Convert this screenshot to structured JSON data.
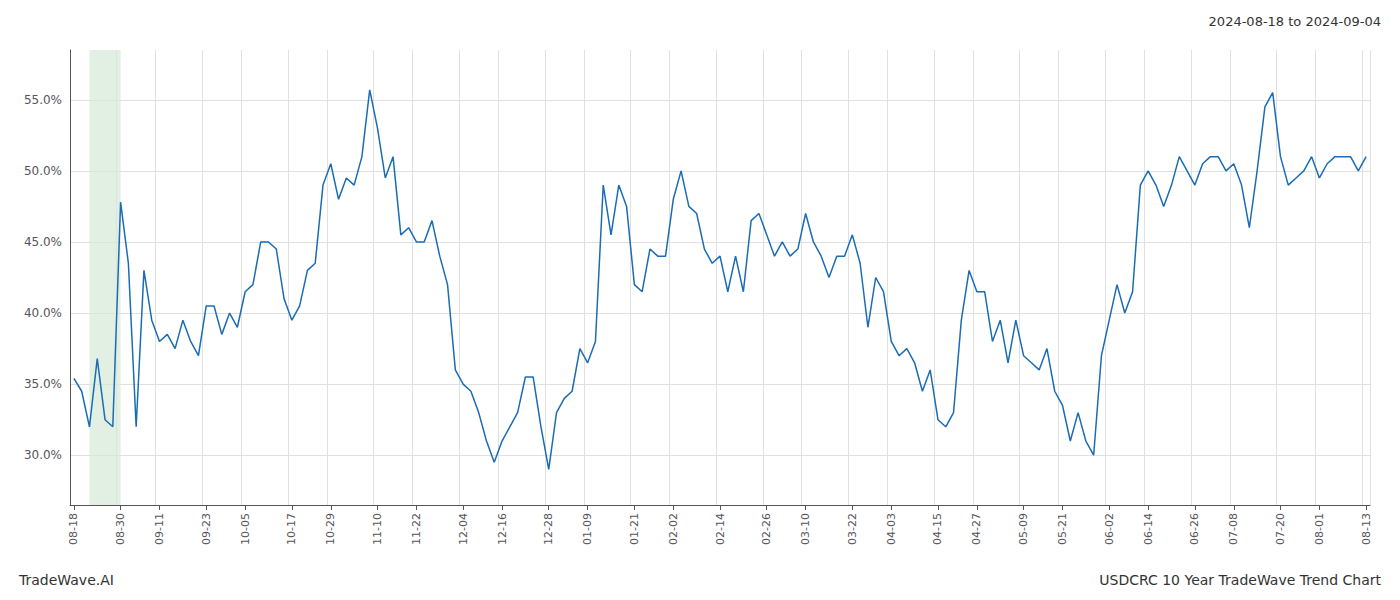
{
  "chart_data": {
    "type": "line",
    "title": "2024-08-18 to 2024-09-04",
    "annotations": [
      "TradeWave.AI",
      "USDCRC 10 Year TradeWave Trend Chart"
    ],
    "color": "#1a6cb5",
    "shaded_range": [
      2,
      6
    ],
    "shaded_color": "#d6ead7",
    "grid": true,
    "ylim": [
      0.265,
      0.585
    ],
    "yticks": [
      {
        "value": 0.3,
        "label": "30.0%"
      },
      {
        "value": 0.35,
        "label": "35.0%"
      },
      {
        "value": 0.4,
        "label": "40.0%"
      },
      {
        "value": 0.45,
        "label": "45.0%"
      },
      {
        "value": 0.5,
        "label": "50.0%"
      },
      {
        "value": 0.55,
        "label": "55.0%"
      }
    ],
    "categories": [
      "08-18",
      null,
      null,
      null,
      null,
      null,
      "08-30",
      null,
      null,
      null,
      null,
      "09-11",
      null,
      null,
      null,
      null,
      null,
      "09-23",
      null,
      null,
      null,
      null,
      "10-05",
      null,
      null,
      null,
      null,
      null,
      "10-17",
      null,
      null,
      null,
      null,
      "10-29",
      null,
      null,
      null,
      null,
      null,
      "11-10",
      null,
      null,
      null,
      null,
      "11-22",
      null,
      null,
      null,
      null,
      null,
      "12-04",
      null,
      null,
      null,
      null,
      "12-16",
      null,
      null,
      null,
      null,
      null,
      "12-28",
      null,
      null,
      null,
      null,
      "01-09",
      null,
      null,
      null,
      null,
      null,
      "01-21",
      null,
      null,
      null,
      null,
      "02-02",
      null,
      null,
      null,
      null,
      null,
      "02-14",
      null,
      null,
      null,
      null,
      null,
      "02-26",
      null,
      null,
      null,
      null,
      "03-10",
      null,
      null,
      null,
      null,
      null,
      "03-22",
      null,
      null,
      null,
      null,
      "04-03",
      null,
      null,
      null,
      null,
      null,
      "04-15",
      null,
      null,
      null,
      null,
      "04-27",
      null,
      null,
      null,
      null,
      null,
      "05-09",
      null,
      null,
      null,
      null,
      "05-21",
      null,
      null,
      null,
      null,
      null,
      "06-02",
      null,
      null,
      null,
      null,
      "06-14",
      null,
      null,
      null,
      null,
      null,
      "06-26",
      null,
      null,
      null,
      null,
      "07-08",
      null,
      null,
      null,
      null,
      null,
      "07-20",
      null,
      null,
      null,
      null,
      "08-01",
      null,
      null,
      null,
      null,
      null,
      "08-13"
    ],
    "values": [
      0.354,
      0.345,
      0.32,
      0.368,
      0.325,
      0.32,
      0.478,
      0.435,
      0.32,
      0.43,
      0.395,
      0.38,
      0.385,
      0.375,
      0.395,
      0.38,
      0.37,
      0.405,
      0.405,
      0.385,
      0.4,
      0.39,
      0.415,
      0.42,
      0.45,
      0.45,
      0.445,
      0.41,
      0.395,
      0.405,
      0.43,
      0.435,
      0.49,
      0.505,
      0.48,
      0.495,
      0.49,
      0.51,
      0.557,
      0.53,
      0.495,
      0.51,
      0.455,
      0.46,
      0.45,
      0.45,
      0.465,
      0.44,
      0.42,
      0.36,
      0.35,
      0.345,
      0.33,
      0.31,
      0.295,
      0.31,
      0.32,
      0.33,
      0.355,
      0.355,
      0.32,
      0.29,
      0.33,
      0.34,
      0.345,
      0.375,
      0.365,
      0.38,
      0.49,
      0.455,
      0.49,
      0.475,
      0.42,
      0.415,
      0.445,
      0.44,
      0.44,
      0.48,
      0.5,
      0.475,
      0.47,
      0.445,
      0.435,
      0.44,
      0.415,
      0.44,
      0.415,
      0.465,
      0.47,
      0.455,
      0.44,
      0.45,
      0.44,
      0.445,
      0.47,
      0.45,
      0.44,
      0.425,
      0.44,
      0.44,
      0.455,
      0.435,
      0.39,
      0.425,
      0.415,
      0.38,
      0.37,
      0.375,
      0.365,
      0.345,
      0.36,
      0.325,
      0.32,
      0.33,
      0.395,
      0.43,
      0.415,
      0.415,
      0.38,
      0.395,
      0.365,
      0.395,
      0.37,
      0.365,
      0.36,
      0.375,
      0.345,
      0.335,
      0.31,
      0.33,
      0.31,
      0.3,
      0.37,
      0.395,
      0.42,
      0.4,
      0.415,
      0.49,
      0.5,
      0.49,
      0.475,
      0.49,
      0.51,
      0.5,
      0.49,
      0.505,
      0.51,
      0.51,
      0.5,
      0.505,
      0.49,
      0.46,
      0.5,
      0.545,
      0.555,
      0.51,
      0.49,
      0.495,
      0.5,
      0.51,
      0.495,
      0.505,
      0.51,
      0.51,
      0.51,
      0.5,
      0.51
    ]
  }
}
